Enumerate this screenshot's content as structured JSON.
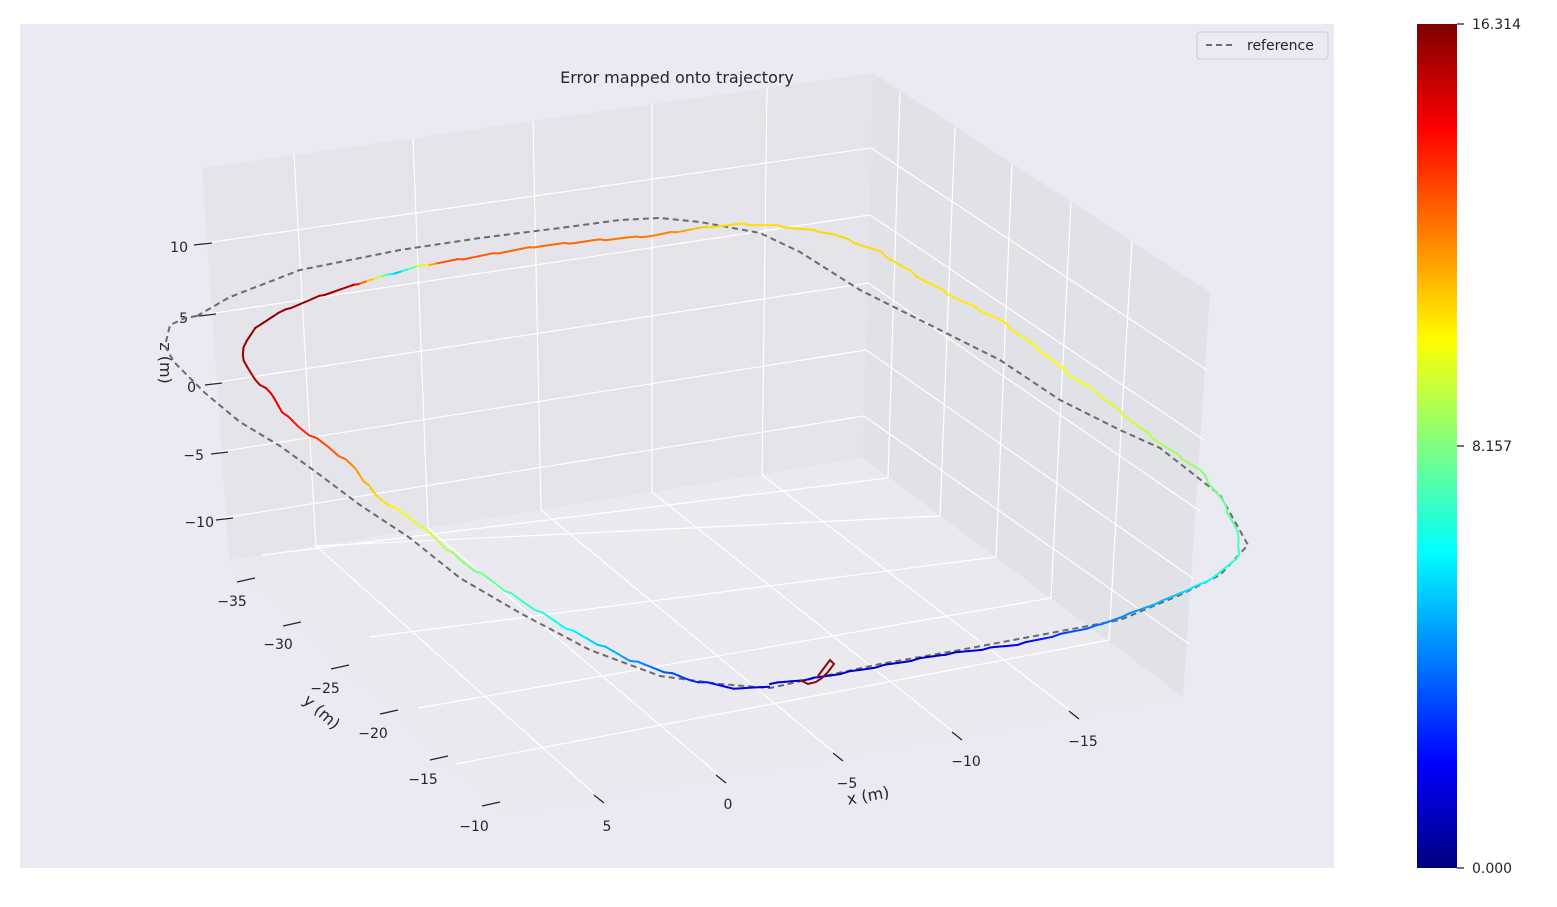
{
  "chart_data": {
    "type": "line",
    "title": "Error mapped onto trajectory",
    "xlabel": "x (m)",
    "ylabel": "y (m)",
    "zlabel": "z (m)",
    "x_ticks": [
      "−15",
      "−10",
      "−5",
      "0",
      "5"
    ],
    "y_ticks": [
      "−35",
      "−30",
      "−25",
      "−20",
      "−15",
      "−10"
    ],
    "z_ticks": [
      "10",
      "5",
      "0",
      "−5",
      "−10"
    ],
    "legend": {
      "entries": [
        "reference"
      ],
      "placement": "top-right"
    },
    "grid": true,
    "colormap": "jet",
    "colorbar": {
      "min": "0.000",
      "mid": "8.157",
      "max": "16.314",
      "range": [
        0,
        16.314
      ]
    },
    "series": [
      {
        "name": "reference",
        "style": "dashed",
        "color": "#6b6b6b"
      }
    ],
    "error_profile": [
      1.3,
      1.2,
      1.1,
      1.0,
      1.2,
      1.6,
      2.4,
      3.6,
      4.4,
      5.2,
      6.3,
      7.3,
      7.8,
      8.5,
      9.0,
      9.6,
      10.0,
      10.2,
      10.4,
      10.5,
      10.6,
      10.7,
      10.8,
      10.8,
      10.7,
      10.7,
      12.2,
      12.4,
      12.6,
      12.5,
      12.8,
      13.0,
      5.0,
      15.5,
      15.9,
      16.2,
      15.9,
      15.0,
      13.8,
      12.8,
      11.2,
      10.0,
      9.2,
      8.1,
      7.3,
      6.5,
      5.4,
      4.3,
      3.0,
      2.0,
      1.3
    ]
  }
}
